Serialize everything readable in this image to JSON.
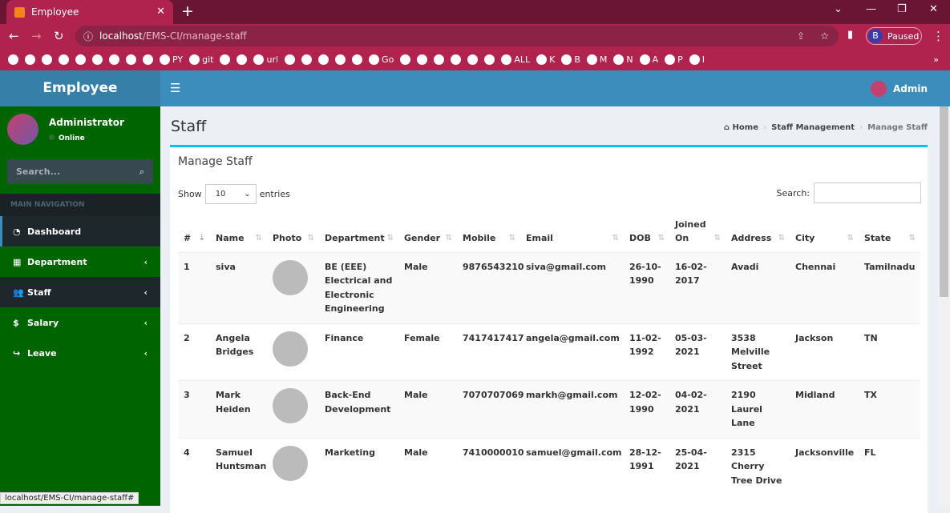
{
  "browser": {
    "tab_title": "Employee",
    "url_host": "localhost",
    "url_path": "/EMS-CI/manage-staff",
    "profile_initial": "B",
    "profile_status": "Paused",
    "bookmarks": [
      "",
      "",
      "",
      "",
      "",
      "",
      "",
      "",
      "",
      "PY",
      "git",
      "",
      "",
      "url",
      "",
      "",
      "",
      "",
      "",
      "Go",
      "",
      "",
      "",
      "",
      "",
      "",
      "ALL",
      "K",
      "B",
      "M",
      "N",
      "A",
      "P",
      "I"
    ],
    "status_url": "localhost/EMS-CI/manage-staff#"
  },
  "app": {
    "logo": "Employee",
    "user_name": "Administrator",
    "user_status": "Online",
    "search_placeholder": "Search...",
    "nav_header": "MAIN NAVIGATION",
    "nav": [
      {
        "label": "Dashboard",
        "icon": "dashboard-icon"
      },
      {
        "label": "Department",
        "icon": "th-icon"
      },
      {
        "label": "Staff",
        "icon": "users-icon"
      },
      {
        "label": "Salary",
        "icon": "dollar-icon"
      },
      {
        "label": "Leave",
        "icon": "share-icon"
      }
    ],
    "header_user": "Admin"
  },
  "page": {
    "title": "Staff",
    "breadcrumb": [
      "Home",
      "Staff Management",
      "Manage Staff"
    ],
    "box_title": "Manage Staff",
    "show_label": "Show",
    "entries_value": "10",
    "entries_label": "entries",
    "search_label": "Search:"
  },
  "table": {
    "columns": [
      "#",
      "Name",
      "Photo",
      "Department",
      "Gender",
      "Mobile",
      "Email",
      "DOB",
      "Joined On",
      "Address",
      "City",
      "State"
    ],
    "rows": [
      [
        "1",
        "siva",
        "",
        "BE (EEE) Electrical and Electronic Engineering",
        "Male",
        "9876543210",
        "siva@gmail.com",
        "26-10-1990",
        "16-02-2017",
        "Avadi",
        "Chennai",
        "Tamilnadu"
      ],
      [
        "2",
        "Angela Bridges",
        "",
        "Finance",
        "Female",
        "7417417417",
        "angela@gmail.com",
        "11-02-1992",
        "05-03-2021",
        "3538 Melville Street",
        "Jackson",
        "TN"
      ],
      [
        "3",
        "Mark Heiden",
        "",
        "Back-End Development",
        "Male",
        "7070707069",
        "markh@gmail.com",
        "12-02-1990",
        "04-02-2021",
        "2190 Laurel Lane",
        "Midland",
        "TX"
      ],
      [
        "4",
        "Samuel Huntsman",
        "",
        "Marketing",
        "Male",
        "7410000010",
        "samuel@gmail.com",
        "28-12-1991",
        "25-04-2021",
        "2315 Cherry Tree Drive",
        "Jacksonville",
        "FL"
      ]
    ]
  },
  "colors": {
    "sidebar": "#006400",
    "header": "#3c8dbc",
    "browser": "#b0234f",
    "box_accent": "#00c0ef"
  }
}
